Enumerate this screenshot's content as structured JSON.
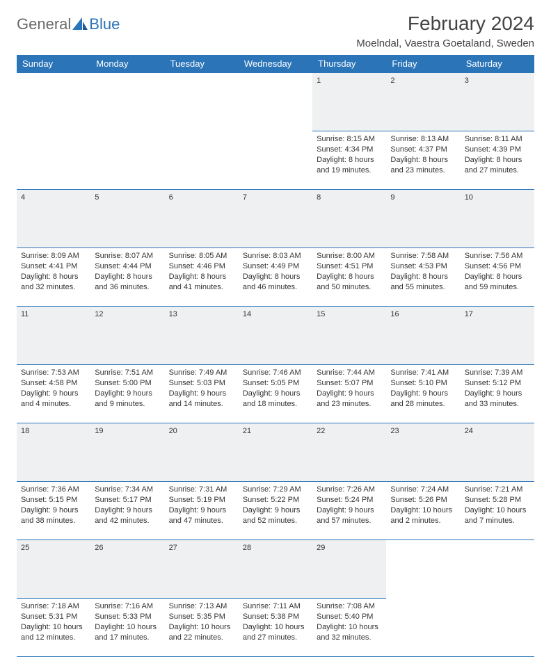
{
  "brand": {
    "part1": "General",
    "part2": "Blue"
  },
  "title": "February 2024",
  "location": "Moelndal, Vaestra Goetaland, Sweden",
  "colors": {
    "accent": "#2b74b8",
    "dayrow_bg": "#eef0f1",
    "text": "#333333"
  },
  "daynames": [
    "Sunday",
    "Monday",
    "Tuesday",
    "Wednesday",
    "Thursday",
    "Friday",
    "Saturday"
  ],
  "layout": {
    "columns": 7,
    "rows": 5,
    "first_day_column": 4
  },
  "weeks": [
    [
      null,
      null,
      null,
      null,
      {
        "num": "1",
        "sunrise": "Sunrise: 8:15 AM",
        "sunset": "Sunset: 4:34 PM",
        "daylight": "Daylight: 8 hours and 19 minutes."
      },
      {
        "num": "2",
        "sunrise": "Sunrise: 8:13 AM",
        "sunset": "Sunset: 4:37 PM",
        "daylight": "Daylight: 8 hours and 23 minutes."
      },
      {
        "num": "3",
        "sunrise": "Sunrise: 8:11 AM",
        "sunset": "Sunset: 4:39 PM",
        "daylight": "Daylight: 8 hours and 27 minutes."
      }
    ],
    [
      {
        "num": "4",
        "sunrise": "Sunrise: 8:09 AM",
        "sunset": "Sunset: 4:41 PM",
        "daylight": "Daylight: 8 hours and 32 minutes."
      },
      {
        "num": "5",
        "sunrise": "Sunrise: 8:07 AM",
        "sunset": "Sunset: 4:44 PM",
        "daylight": "Daylight: 8 hours and 36 minutes."
      },
      {
        "num": "6",
        "sunrise": "Sunrise: 8:05 AM",
        "sunset": "Sunset: 4:46 PM",
        "daylight": "Daylight: 8 hours and 41 minutes."
      },
      {
        "num": "7",
        "sunrise": "Sunrise: 8:03 AM",
        "sunset": "Sunset: 4:49 PM",
        "daylight": "Daylight: 8 hours and 46 minutes."
      },
      {
        "num": "8",
        "sunrise": "Sunrise: 8:00 AM",
        "sunset": "Sunset: 4:51 PM",
        "daylight": "Daylight: 8 hours and 50 minutes."
      },
      {
        "num": "9",
        "sunrise": "Sunrise: 7:58 AM",
        "sunset": "Sunset: 4:53 PM",
        "daylight": "Daylight: 8 hours and 55 minutes."
      },
      {
        "num": "10",
        "sunrise": "Sunrise: 7:56 AM",
        "sunset": "Sunset: 4:56 PM",
        "daylight": "Daylight: 8 hours and 59 minutes."
      }
    ],
    [
      {
        "num": "11",
        "sunrise": "Sunrise: 7:53 AM",
        "sunset": "Sunset: 4:58 PM",
        "daylight": "Daylight: 9 hours and 4 minutes."
      },
      {
        "num": "12",
        "sunrise": "Sunrise: 7:51 AM",
        "sunset": "Sunset: 5:00 PM",
        "daylight": "Daylight: 9 hours and 9 minutes."
      },
      {
        "num": "13",
        "sunrise": "Sunrise: 7:49 AM",
        "sunset": "Sunset: 5:03 PM",
        "daylight": "Daylight: 9 hours and 14 minutes."
      },
      {
        "num": "14",
        "sunrise": "Sunrise: 7:46 AM",
        "sunset": "Sunset: 5:05 PM",
        "daylight": "Daylight: 9 hours and 18 minutes."
      },
      {
        "num": "15",
        "sunrise": "Sunrise: 7:44 AM",
        "sunset": "Sunset: 5:07 PM",
        "daylight": "Daylight: 9 hours and 23 minutes."
      },
      {
        "num": "16",
        "sunrise": "Sunrise: 7:41 AM",
        "sunset": "Sunset: 5:10 PM",
        "daylight": "Daylight: 9 hours and 28 minutes."
      },
      {
        "num": "17",
        "sunrise": "Sunrise: 7:39 AM",
        "sunset": "Sunset: 5:12 PM",
        "daylight": "Daylight: 9 hours and 33 minutes."
      }
    ],
    [
      {
        "num": "18",
        "sunrise": "Sunrise: 7:36 AM",
        "sunset": "Sunset: 5:15 PM",
        "daylight": "Daylight: 9 hours and 38 minutes."
      },
      {
        "num": "19",
        "sunrise": "Sunrise: 7:34 AM",
        "sunset": "Sunset: 5:17 PM",
        "daylight": "Daylight: 9 hours and 42 minutes."
      },
      {
        "num": "20",
        "sunrise": "Sunrise: 7:31 AM",
        "sunset": "Sunset: 5:19 PM",
        "daylight": "Daylight: 9 hours and 47 minutes."
      },
      {
        "num": "21",
        "sunrise": "Sunrise: 7:29 AM",
        "sunset": "Sunset: 5:22 PM",
        "daylight": "Daylight: 9 hours and 52 minutes."
      },
      {
        "num": "22",
        "sunrise": "Sunrise: 7:26 AM",
        "sunset": "Sunset: 5:24 PM",
        "daylight": "Daylight: 9 hours and 57 minutes."
      },
      {
        "num": "23",
        "sunrise": "Sunrise: 7:24 AM",
        "sunset": "Sunset: 5:26 PM",
        "daylight": "Daylight: 10 hours and 2 minutes."
      },
      {
        "num": "24",
        "sunrise": "Sunrise: 7:21 AM",
        "sunset": "Sunset: 5:28 PM",
        "daylight": "Daylight: 10 hours and 7 minutes."
      }
    ],
    [
      {
        "num": "25",
        "sunrise": "Sunrise: 7:18 AM",
        "sunset": "Sunset: 5:31 PM",
        "daylight": "Daylight: 10 hours and 12 minutes."
      },
      {
        "num": "26",
        "sunrise": "Sunrise: 7:16 AM",
        "sunset": "Sunset: 5:33 PM",
        "daylight": "Daylight: 10 hours and 17 minutes."
      },
      {
        "num": "27",
        "sunrise": "Sunrise: 7:13 AM",
        "sunset": "Sunset: 5:35 PM",
        "daylight": "Daylight: 10 hours and 22 minutes."
      },
      {
        "num": "28",
        "sunrise": "Sunrise: 7:11 AM",
        "sunset": "Sunset: 5:38 PM",
        "daylight": "Daylight: 10 hours and 27 minutes."
      },
      {
        "num": "29",
        "sunrise": "Sunrise: 7:08 AM",
        "sunset": "Sunset: 5:40 PM",
        "daylight": "Daylight: 10 hours and 32 minutes."
      },
      null,
      null
    ]
  ]
}
